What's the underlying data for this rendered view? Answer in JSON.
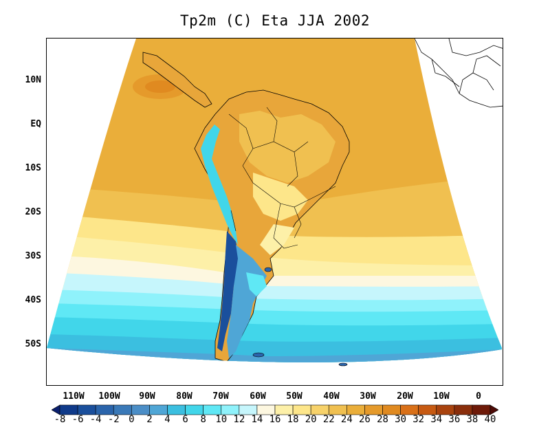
{
  "title": "Tp2m (C) Eta JJA 2002",
  "lat_labels": [
    "10N",
    "EQ",
    "10S",
    "20S",
    "30S",
    "40S",
    "50S"
  ],
  "lon_labels": [
    "110W",
    "100W",
    "90W",
    "80W",
    "70W",
    "60W",
    "50W",
    "40W",
    "30W",
    "20W",
    "10W",
    "0"
  ],
  "colorbar": {
    "labels": [
      "-8",
      "-6",
      "-4",
      "-2",
      "0",
      "2",
      "4",
      "6",
      "8",
      "10",
      "12",
      "14",
      "16",
      "18",
      "20",
      "22",
      "24",
      "26",
      "28",
      "30",
      "32",
      "34",
      "36",
      "38",
      "40"
    ],
    "colors": [
      "#0a1f6e",
      "#0f3a8a",
      "#1a4f9c",
      "#2a64ab",
      "#3a79b8",
      "#4b8ec7",
      "#4fa6d6",
      "#3bbfe0",
      "#41d6ea",
      "#5fe8f5",
      "#8ff2fb",
      "#c6f6fc",
      "#fdf7e0",
      "#fdf0a8",
      "#fde68a",
      "#f7d26a",
      "#f0c050",
      "#eaae3a",
      "#e59a2b",
      "#e08a20",
      "#d97018",
      "#c75a12",
      "#a9430e",
      "#8a2e0b",
      "#6e1a08",
      "#4d0a06"
    ]
  },
  "colors": {
    "ocean_warm": "#eaae3a",
    "ocean_mid": "#f0c050",
    "ocean_cool": "#fde68a",
    "ocean_cold": "#41d6ea",
    "ocean_coldest": "#4b8ec7",
    "land_outline": "#000000"
  }
}
